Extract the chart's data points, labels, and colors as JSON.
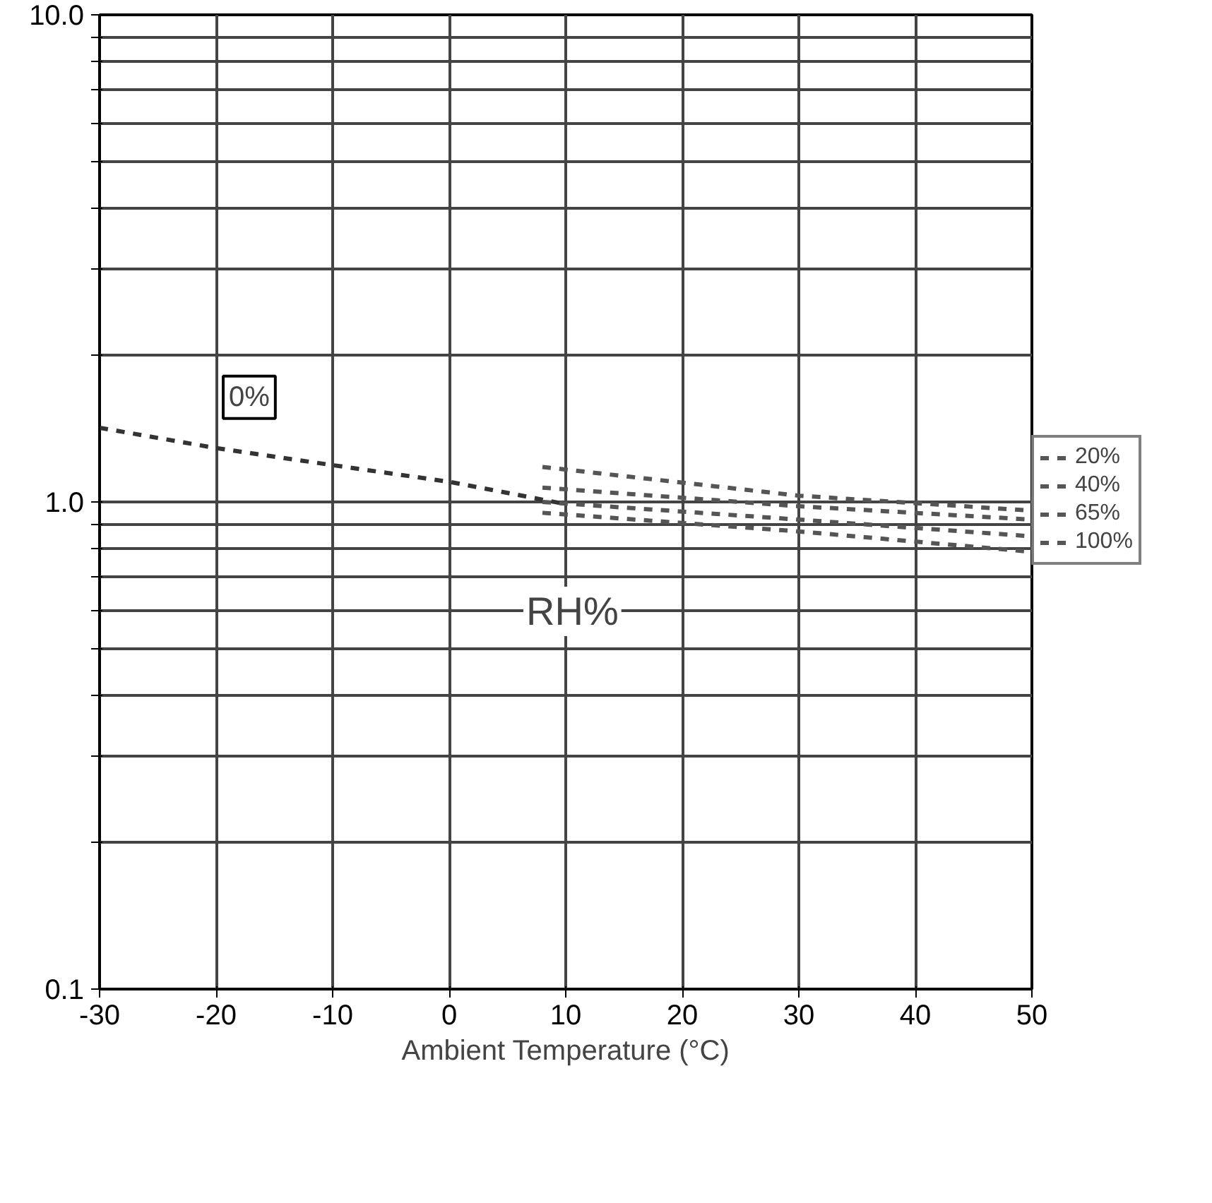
{
  "chart_data": {
    "type": "line",
    "xlabel": "Ambient Temperature (°C)",
    "xlim": [
      -30,
      50
    ],
    "xticks": [
      -30,
      -20,
      -10,
      0,
      10,
      20,
      30,
      40,
      50
    ],
    "ylim": [
      0.1,
      10
    ],
    "log": true,
    "yticks": [
      {
        "value": 0.1,
        "label": "0.1"
      },
      {
        "value": 0.2,
        "label": null
      },
      {
        "value": 0.3,
        "label": null
      },
      {
        "value": 0.4,
        "label": null
      },
      {
        "value": 0.5,
        "label": null
      },
      {
        "value": 0.6,
        "label": null
      },
      {
        "value": 0.7,
        "label": null
      },
      {
        "value": 0.8,
        "label": null
      },
      {
        "value": 0.9,
        "label": null
      },
      {
        "value": 1,
        "label": "1.0"
      },
      {
        "value": 2,
        "label": null
      },
      {
        "value": 3,
        "label": null
      },
      {
        "value": 4,
        "label": null
      },
      {
        "value": 5,
        "label": null
      },
      {
        "value": 6,
        "label": null
      },
      {
        "value": 7,
        "label": null
      },
      {
        "value": 8,
        "label": null
      },
      {
        "value": 9,
        "label": null
      },
      {
        "value": 10,
        "label": "10.0"
      }
    ],
    "grid": true,
    "line_style": "dashed",
    "marker": "none",
    "series": [
      {
        "name": "0%",
        "color": "#333333",
        "x": [
          -30,
          -20,
          -10,
          0,
          10
        ],
        "values": [
          1.42,
          1.29,
          1.19,
          1.1,
          0.99
        ]
      },
      {
        "name": "20%",
        "color": "#555555",
        "x": [
          8,
          30,
          50
        ],
        "values": [
          1.18,
          1.03,
          0.96
        ]
      },
      {
        "name": "40%",
        "color": "#555555",
        "x": [
          8,
          30,
          50
        ],
        "values": [
          1.07,
          0.98,
          0.92
        ]
      },
      {
        "name": "65%",
        "color": "#555555",
        "x": [
          8,
          30,
          50
        ],
        "values": [
          1.0,
          0.92,
          0.85
        ]
      },
      {
        "name": "100%",
        "color": "#555555",
        "x": [
          8,
          30,
          50
        ],
        "values": [
          0.95,
          0.87,
          0.79
        ]
      }
    ],
    "legend": "right",
    "annotations": [
      "RH%"
    ]
  }
}
